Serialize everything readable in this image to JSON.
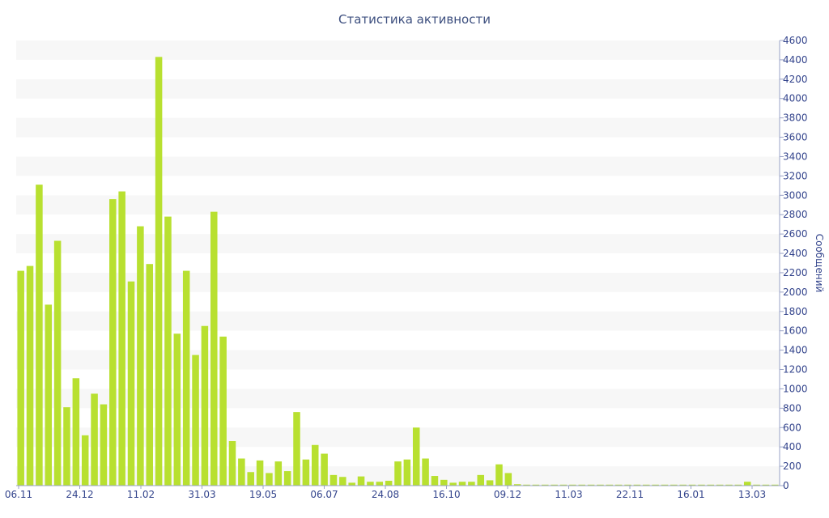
{
  "chart_data": {
    "type": "bar",
    "title": "Статистика активности",
    "ylabel": "Сообщений",
    "xlabel": "",
    "ylim": [
      0,
      4600
    ],
    "yticks": [
      0,
      200,
      400,
      600,
      800,
      1000,
      1200,
      1400,
      1600,
      1800,
      2000,
      2200,
      2400,
      2600,
      2800,
      3000,
      3200,
      3400,
      3600,
      3800,
      4000,
      4200,
      4400,
      4600
    ],
    "x_tick_labels": [
      "06.11",
      "24.12",
      "11.02",
      "31.03",
      "19.05",
      "06.07",
      "24.08",
      "16.10",
      "09.12",
      "11.03",
      "22.11",
      "16.01",
      "13.03"
    ],
    "grid": "alternating horizontal bands",
    "colors": {
      "bar": "#b8e030",
      "band": "#f7f7f7",
      "text": "#33448c",
      "title": "#3d4f7f"
    },
    "values": [
      2220,
      2270,
      3110,
      1870,
      2530,
      810,
      1110,
      520,
      950,
      840,
      2960,
      3040,
      2110,
      2680,
      2290,
      4430,
      2780,
      1570,
      2220,
      1350,
      1650,
      2830,
      1540,
      460,
      280,
      140,
      260,
      130,
      250,
      150,
      760,
      270,
      420,
      330,
      110,
      90,
      30,
      95,
      40,
      40,
      50,
      250,
      270,
      600,
      280,
      100,
      60,
      30,
      40,
      40,
      110,
      55,
      220,
      130,
      15,
      10,
      10,
      10,
      10,
      10,
      10,
      10,
      10,
      10,
      10,
      10,
      10,
      10,
      10,
      10,
      10,
      10,
      10,
      10,
      10,
      10,
      10,
      10,
      10,
      40,
      10,
      10,
      10
    ]
  }
}
